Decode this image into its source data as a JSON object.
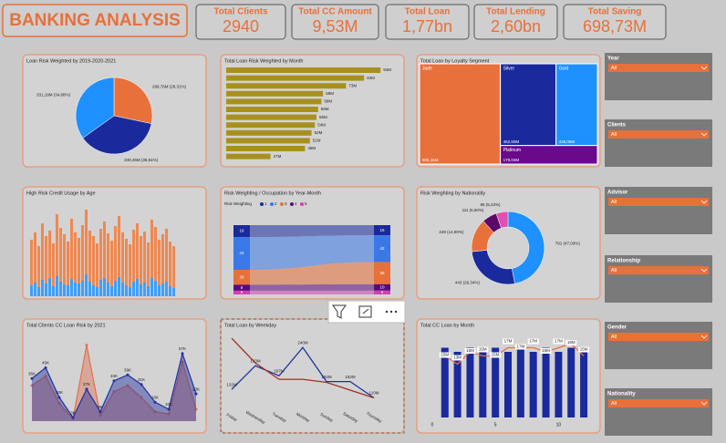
{
  "header": {
    "title": "BANKING ANALYSIS"
  },
  "kpis": [
    {
      "label": "Total Clients",
      "value": "2940"
    },
    {
      "label": "Total CC Amount",
      "value": "9,53M"
    },
    {
      "label": "Total Loan",
      "value": "1,77bn"
    },
    {
      "label": "Total Lending",
      "value": "2,60bn"
    },
    {
      "label": "Total Saving",
      "value": "698,73M"
    }
  ],
  "chart_data": [
    {
      "type": "pie",
      "title": "Loan Risk Weighted by 2019-2020-2021",
      "values": [
        268.76,
        349.45,
        331.19
      ],
      "value_labels": [
        "268,76M (28,31%)",
        "349,45M (36,81%)",
        "331,19M (34,88%)"
      ],
      "colors": [
        "#e8703a",
        "#1a2a9c",
        "#1e90ff"
      ]
    },
    {
      "type": "hbar",
      "title": "Total Loan Risk Weighted by Month",
      "values": [
        94,
        84,
        73,
        59,
        58,
        56,
        55,
        54,
        52,
        51,
        48,
        27
      ],
      "value_labels": [
        "94M",
        "84M",
        "73M",
        "59M",
        "58M",
        "56M",
        "55M",
        "54M",
        "52M",
        "51M",
        "48M",
        "27M"
      ],
      "color": "#a8901e"
    },
    {
      "type": "treemap",
      "title": "Total Loan by Loyalty Segment",
      "categories": [
        "Jade",
        "Silver",
        "Gold",
        "Platinum"
      ],
      "values": [
        806.15,
        452.6,
        336.09,
        179.04
      ],
      "value_labels": [
        "806,15M",
        "452,60M",
        "336,09M",
        "179,04M"
      ],
      "colors": [
        "#e8703a",
        "#1a2a9c",
        "#1e90ff",
        "#6a0a8a"
      ]
    },
    {
      "type": "bar",
      "title": "High Risk Credit Usage by Age",
      "series": [
        {
          "color": "#f08850",
          "values": [
            62,
            70,
            55,
            80,
            66,
            72,
            58,
            90,
            75,
            68,
            60,
            85,
            70,
            64,
            78,
            95,
            72,
            66,
            58,
            74,
            82,
            69,
            61,
            77,
            88,
            70,
            63,
            57,
            73,
            80,
            66,
            71,
            59,
            84,
            76,
            62,
            68,
            74,
            60,
            55
          ]
        },
        {
          "color": "#3aa0ff",
          "values": [
            12,
            15,
            10,
            18,
            14,
            20,
            11,
            22,
            16,
            13,
            12,
            19,
            15,
            14,
            17,
            24,
            16,
            12,
            10,
            18,
            20,
            15,
            11,
            17,
            21,
            15,
            12,
            10,
            16,
            19,
            13,
            15,
            11,
            20,
            17,
            12,
            14,
            16,
            11,
            9
          ]
        }
      ]
    },
    {
      "type": "ribbon",
      "title": "Risk Weighting / Occupation by Year-Month",
      "legend_title": "Risk Weighting",
      "series": [
        {
          "name": "1",
          "color": "#1a2a9c",
          "values": [
            16,
            16
          ]
        },
        {
          "name": "2",
          "color": "#3a78e8",
          "values": [
            44,
            42
          ]
        },
        {
          "name": "3",
          "color": "#e8703a",
          "values": [
            20,
            35
          ]
        },
        {
          "name": "4",
          "color": "#5a0a7a",
          "values": [
            8,
            10
          ]
        },
        {
          "name": "5",
          "color": "#d040b0",
          "values": [
            5,
            6
          ]
        }
      ]
    },
    {
      "type": "donut",
      "title": "Risk Weighting by Nationality",
      "values": [
        791,
        443,
        249,
        111,
        88
      ],
      "value_labels": [
        "791 (47,03%)",
        "443 (26,34%)",
        "249 (14,80%)",
        "111 (6,60%)",
        "88 (5,23%)"
      ],
      "colors": [
        "#1e90ff",
        "#1a2a9c",
        "#e8703a",
        "#5a0a6a",
        "#e050b0"
      ]
    },
    {
      "type": "area",
      "title": "Total Clients CC Loan Risk by 2021",
      "series": [
        {
          "color": "#2030a0",
          "values": [
            36,
            45,
            20,
            3,
            27,
            8,
            34,
            39,
            31,
            16,
            10,
            57,
            23
          ],
          "value_labels": [
            "36K",
            "45K",
            "20K",
            "3K",
            "27K",
            "8K",
            "34K",
            "39K",
            "31K",
            "16K",
            "10K",
            "57K",
            "23K"
          ]
        },
        {
          "color": "#e07050",
          "values": [
            30,
            38,
            15,
            2,
            64,
            5,
            25,
            30,
            20,
            8,
            6,
            50,
            10
          ]
        }
      ]
    },
    {
      "type": "line",
      "title": "Total Loan by Weekday",
      "categories": [
        "Friday",
        "Wednesday",
        "Tuesday",
        "Monday",
        "Sunday",
        "Saturday",
        "Thursday"
      ],
      "ylim": [
        90,
        290
      ],
      "series": [
        {
          "color": "#2030a0",
          "values": [
            132,
            193,
            167,
            240,
            152,
            152,
            110
          ],
          "value_labels": [
            "132M",
            "193M",
            "167M",
            "240M",
            "152M",
            "152M",
            "110M"
          ]
        },
        {
          "color": "#a03020",
          "values": [
            264,
            200,
            158,
            158,
            150,
            130,
            110
          ]
        }
      ]
    },
    {
      "type": "combo",
      "title": "Total CC Loan by Month",
      "x": [
        1,
        2,
        3,
        4,
        5,
        6,
        7,
        8,
        9,
        10,
        11,
        12
      ],
      "xlim": [
        -0.5,
        12.5
      ],
      "xticks": [
        0,
        5,
        10
      ],
      "ylim": [
        0,
        20
      ],
      "series": [
        {
          "type": "bar",
          "color": "#1a2a9c",
          "values": [
            17,
            16,
            17,
            16,
            17,
            16,
            17,
            16,
            17,
            16,
            17,
            16
          ]
        },
        {
          "type": "line",
          "color": "#e8703a",
          "values": [
            15,
            13,
            16,
            15,
            15,
            17,
            17,
            17,
            16,
            17,
            18,
            15
          ],
          "value_labels": [
            "15M",
            "13M",
            "16M",
            "15M",
            "15M",
            "17M",
            "17M",
            "17M",
            "16M",
            "17M",
            "18M",
            "15M"
          ]
        }
      ]
    }
  ],
  "slicers": [
    {
      "label": "Year",
      "value": "All"
    },
    {
      "label": "Clients",
      "value": "All"
    },
    {
      "label": "Advisor",
      "value": "All"
    },
    {
      "label": "Relationship",
      "value": "All"
    },
    {
      "label": "Gender",
      "value": "All"
    },
    {
      "label": "Nationality",
      "value": "All"
    }
  ]
}
